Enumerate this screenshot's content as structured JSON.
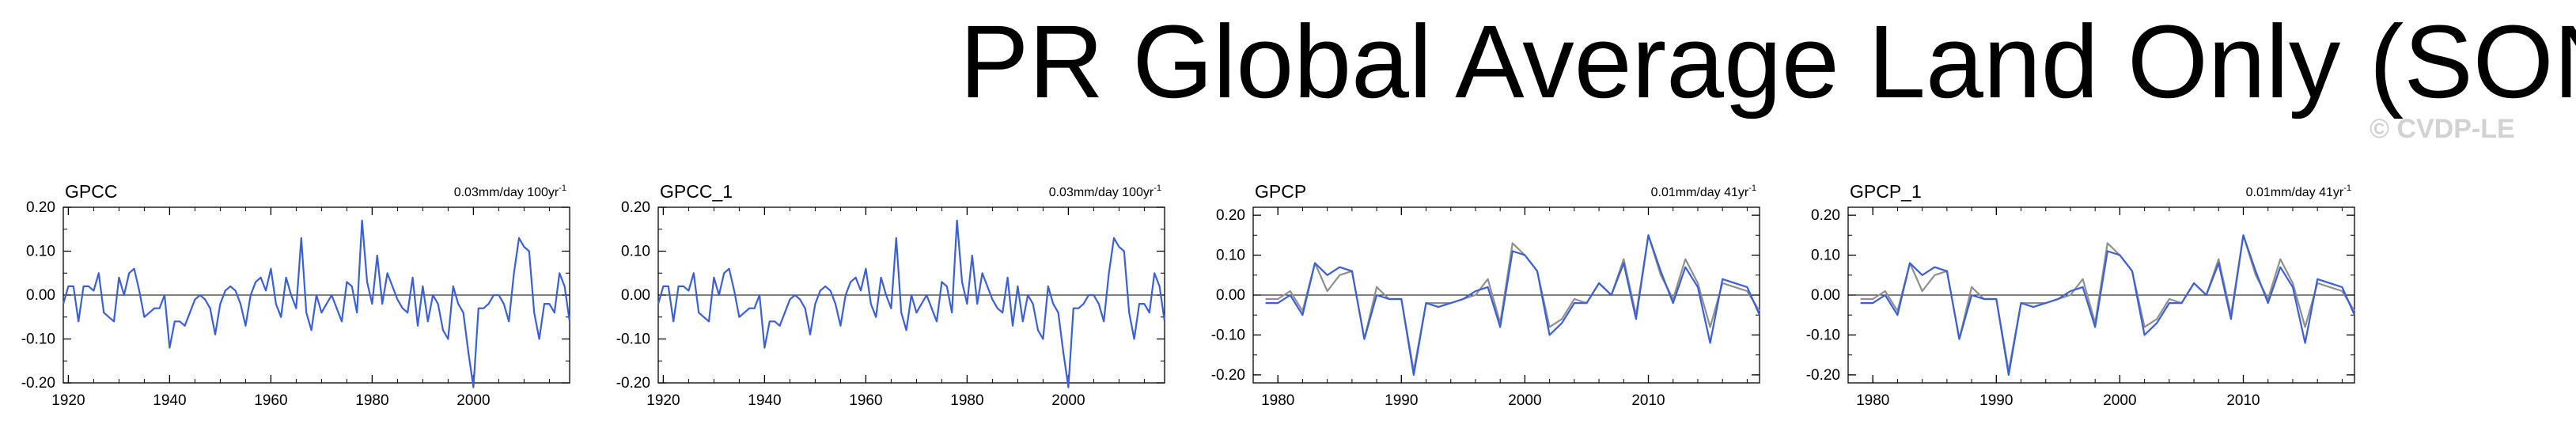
{
  "title": "PR Global Average Land Only (SON)",
  "watermark": "© CVDP-LE",
  "colors": {
    "series_primary": "#3a5fd9",
    "series_secondary": "#8f8f8f",
    "axis": "#000000",
    "zero_line": "#000000"
  },
  "chart_data": [
    {
      "type": "line",
      "name": "GPCC",
      "trend_label": "0.03mm/day 100yr",
      "trend_superscript": "-1",
      "xlim": [
        1919,
        2019
      ],
      "ylim": [
        -0.2,
        0.2
      ],
      "yticks": [
        0.2,
        0.1,
        0.0,
        -0.1,
        -0.2
      ],
      "ytick_labels": [
        "0.20",
        "0.10",
        "0.00",
        "-0.10",
        "-0.20"
      ],
      "xticks": [
        1920,
        1940,
        1960,
        1980,
        2000
      ],
      "xtick_labels": [
        "1920",
        "1940",
        "1960",
        "1980",
        "2000"
      ],
      "grid": false,
      "series": [
        {
          "x": [
            1919,
            1920,
            1921,
            1922,
            1923,
            1924,
            1925,
            1926,
            1927,
            1928,
            1929,
            1930,
            1931,
            1932,
            1933,
            1934,
            1935,
            1936,
            1937,
            1938,
            1939,
            1940,
            1941,
            1942,
            1943,
            1944,
            1945,
            1946,
            1947,
            1948,
            1949,
            1950,
            1951,
            1952,
            1953,
            1954,
            1955,
            1956,
            1957,
            1958,
            1959,
            1960,
            1961,
            1962,
            1963,
            1964,
            1965,
            1966,
            1967,
            1968,
            1969,
            1970,
            1971,
            1972,
            1973,
            1974,
            1975,
            1976,
            1977,
            1978,
            1979,
            1980,
            1981,
            1982,
            1983,
            1984,
            1985,
            1986,
            1987,
            1988,
            1989,
            1990,
            1991,
            1992,
            1993,
            1994,
            1995,
            1996,
            1997,
            1998,
            1999,
            2000,
            2001,
            2002,
            2003,
            2004,
            2005,
            2006,
            2007,
            2008,
            2009,
            2010,
            2011,
            2012,
            2013,
            2014,
            2015,
            2016,
            2017,
            2018,
            2019
          ],
          "y": [
            -0.02,
            0.02,
            0.02,
            -0.06,
            0.02,
            0.02,
            0.01,
            0.05,
            -0.04,
            -0.05,
            -0.06,
            0.04,
            0.0,
            0.05,
            0.06,
            0.01,
            -0.05,
            -0.04,
            -0.03,
            -0.03,
            0.0,
            -0.12,
            -0.06,
            -0.06,
            -0.07,
            -0.04,
            -0.01,
            0.0,
            -0.01,
            -0.03,
            -0.09,
            -0.02,
            0.01,
            0.02,
            0.01,
            -0.02,
            -0.07,
            0.0,
            0.03,
            0.04,
            0.01,
            0.06,
            -0.02,
            -0.05,
            0.04,
            0.0,
            -0.03,
            0.13,
            -0.04,
            -0.08,
            0.0,
            -0.04,
            -0.02,
            0.0,
            -0.03,
            -0.06,
            0.03,
            0.02,
            -0.04,
            0.17,
            0.03,
            -0.02,
            0.09,
            -0.02,
            0.05,
            0.02,
            -0.01,
            -0.03,
            -0.04,
            0.04,
            -0.07,
            0.02,
            -0.06,
            0.0,
            -0.02,
            -0.08,
            -0.1,
            0.02,
            -0.02,
            -0.04,
            -0.13,
            -0.21,
            -0.03,
            -0.03,
            -0.02,
            0.0,
            0.0,
            -0.02,
            -0.06,
            0.05,
            0.13,
            0.11,
            0.1,
            -0.04,
            -0.1,
            -0.02,
            -0.02,
            -0.04,
            0.05,
            0.02,
            -0.06
          ]
        }
      ]
    },
    {
      "type": "line",
      "name": "GPCC_1",
      "trend_label": "0.03mm/day 100yr",
      "trend_superscript": "-1",
      "xlim": [
        1919,
        2019
      ],
      "ylim": [
        -0.2,
        0.2
      ],
      "yticks": [
        0.2,
        0.1,
        0.0,
        -0.1,
        -0.2
      ],
      "ytick_labels": [
        "0.20",
        "0.10",
        "0.00",
        "-0.10",
        "-0.20"
      ],
      "xticks": [
        1920,
        1940,
        1960,
        1980,
        2000
      ],
      "xtick_labels": [
        "1920",
        "1940",
        "1960",
        "1980",
        "2000"
      ],
      "grid": false,
      "series": [
        {
          "x": [
            1919,
            1920,
            1921,
            1922,
            1923,
            1924,
            1925,
            1926,
            1927,
            1928,
            1929,
            1930,
            1931,
            1932,
            1933,
            1934,
            1935,
            1936,
            1937,
            1938,
            1939,
            1940,
            1941,
            1942,
            1943,
            1944,
            1945,
            1946,
            1947,
            1948,
            1949,
            1950,
            1951,
            1952,
            1953,
            1954,
            1955,
            1956,
            1957,
            1958,
            1959,
            1960,
            1961,
            1962,
            1963,
            1964,
            1965,
            1966,
            1967,
            1968,
            1969,
            1970,
            1971,
            1972,
            1973,
            1974,
            1975,
            1976,
            1977,
            1978,
            1979,
            1980,
            1981,
            1982,
            1983,
            1984,
            1985,
            1986,
            1987,
            1988,
            1989,
            1990,
            1991,
            1992,
            1993,
            1994,
            1995,
            1996,
            1997,
            1998,
            1999,
            2000,
            2001,
            2002,
            2003,
            2004,
            2005,
            2006,
            2007,
            2008,
            2009,
            2010,
            2011,
            2012,
            2013,
            2014,
            2015,
            2016,
            2017,
            2018,
            2019
          ],
          "y": [
            -0.02,
            0.02,
            0.02,
            -0.06,
            0.02,
            0.02,
            0.01,
            0.05,
            -0.04,
            -0.05,
            -0.06,
            0.04,
            0.0,
            0.05,
            0.06,
            0.01,
            -0.05,
            -0.04,
            -0.03,
            -0.03,
            0.0,
            -0.12,
            -0.06,
            -0.06,
            -0.07,
            -0.04,
            -0.01,
            0.0,
            -0.01,
            -0.03,
            -0.09,
            -0.02,
            0.01,
            0.02,
            0.01,
            -0.02,
            -0.07,
            0.0,
            0.03,
            0.04,
            0.01,
            0.06,
            -0.02,
            -0.05,
            0.04,
            0.0,
            -0.03,
            0.13,
            -0.04,
            -0.08,
            0.0,
            -0.04,
            -0.02,
            0.0,
            -0.03,
            -0.06,
            0.03,
            0.02,
            -0.04,
            0.17,
            0.03,
            -0.02,
            0.09,
            -0.02,
            0.05,
            0.02,
            -0.01,
            -0.03,
            -0.04,
            0.04,
            -0.07,
            0.02,
            -0.06,
            0.0,
            -0.02,
            -0.08,
            -0.1,
            0.02,
            -0.02,
            -0.04,
            -0.13,
            -0.21,
            -0.03,
            -0.03,
            -0.02,
            0.0,
            0.0,
            -0.02,
            -0.06,
            0.05,
            0.13,
            0.11,
            0.1,
            -0.04,
            -0.1,
            -0.02,
            -0.02,
            -0.04,
            0.05,
            0.02,
            -0.06
          ]
        }
      ]
    },
    {
      "type": "line",
      "name": "GPCP",
      "trend_label": "0.01mm/day 41yr",
      "trend_superscript": "-1",
      "xlim": [
        1978,
        2019
      ],
      "ylim": [
        -0.22,
        0.22
      ],
      "yticks": [
        0.2,
        0.1,
        0.0,
        -0.1,
        -0.2
      ],
      "ytick_labels": [
        "0.20",
        "0.10",
        "0.00",
        "-0.10",
        "-0.20"
      ],
      "xticks": [
        1980,
        1990,
        2000,
        2010
      ],
      "xtick_labels": [
        "1980",
        "1990",
        "2000",
        "2010"
      ],
      "grid": false,
      "series": [
        {
          "x": [
            1979,
            1980,
            1981,
            1982,
            1983,
            1984,
            1985,
            1986,
            1987,
            1988,
            1989,
            1990,
            1991,
            1992,
            1993,
            1994,
            1995,
            1996,
            1997,
            1998,
            1999,
            2000,
            2001,
            2002,
            2003,
            2004,
            2005,
            2006,
            2007,
            2008,
            2009,
            2010,
            2011,
            2012,
            2013,
            2014,
            2015,
            2016,
            2017,
            2018,
            2019
          ],
          "y": [
            -0.01,
            -0.01,
            0.01,
            -0.04,
            0.08,
            0.01,
            0.05,
            0.06,
            -0.11,
            0.02,
            -0.01,
            -0.01,
            -0.19,
            -0.02,
            -0.02,
            -0.02,
            -0.01,
            0.0,
            0.04,
            -0.07,
            0.13,
            0.1,
            0.06,
            -0.08,
            -0.06,
            -0.01,
            -0.02,
            0.03,
            0.0,
            0.09,
            -0.05,
            0.15,
            0.05,
            -0.01,
            0.09,
            0.03,
            -0.08,
            0.03,
            0.02,
            0.01,
            -0.04
          ]
        },
        {
          "x": [
            1979,
            1980,
            1981,
            1982,
            1983,
            1984,
            1985,
            1986,
            1987,
            1988,
            1989,
            1990,
            1991,
            1992,
            1993,
            1994,
            1995,
            1996,
            1997,
            1998,
            1999,
            2000,
            2001,
            2002,
            2003,
            2004,
            2005,
            2006,
            2007,
            2008,
            2009,
            2010,
            2011,
            2012,
            2013,
            2014,
            2015,
            2016,
            2017,
            2018,
            2019
          ],
          "y": [
            -0.02,
            -0.02,
            0.0,
            -0.05,
            0.08,
            0.05,
            0.07,
            0.06,
            -0.11,
            0.0,
            -0.01,
            -0.01,
            -0.2,
            -0.02,
            -0.03,
            -0.02,
            -0.01,
            0.01,
            0.02,
            -0.08,
            0.11,
            0.1,
            0.06,
            -0.1,
            -0.07,
            -0.02,
            -0.02,
            0.03,
            0.0,
            0.08,
            -0.06,
            0.15,
            0.06,
            -0.02,
            0.07,
            0.02,
            -0.12,
            0.04,
            0.03,
            0.02,
            -0.05
          ]
        }
      ]
    },
    {
      "type": "line",
      "name": "GPCP_1",
      "trend_label": "0.01mm/day 41yr",
      "trend_superscript": "-1",
      "xlim": [
        1978,
        2019
      ],
      "ylim": [
        -0.22,
        0.22
      ],
      "yticks": [
        0.2,
        0.1,
        0.0,
        -0.1,
        -0.2
      ],
      "ytick_labels": [
        "0.20",
        "0.10",
        "0.00",
        "-0.10",
        "-0.20"
      ],
      "xticks": [
        1980,
        1990,
        2000,
        2010
      ],
      "xtick_labels": [
        "1980",
        "1990",
        "2000",
        "2010"
      ],
      "grid": false,
      "series": [
        {
          "x": [
            1979,
            1980,
            1981,
            1982,
            1983,
            1984,
            1985,
            1986,
            1987,
            1988,
            1989,
            1990,
            1991,
            1992,
            1993,
            1994,
            1995,
            1996,
            1997,
            1998,
            1999,
            2000,
            2001,
            2002,
            2003,
            2004,
            2005,
            2006,
            2007,
            2008,
            2009,
            2010,
            2011,
            2012,
            2013,
            2014,
            2015,
            2016,
            2017,
            2018,
            2019
          ],
          "y": [
            -0.01,
            -0.01,
            0.01,
            -0.04,
            0.08,
            0.01,
            0.05,
            0.06,
            -0.11,
            0.02,
            -0.01,
            -0.01,
            -0.19,
            -0.02,
            -0.02,
            -0.02,
            -0.01,
            0.0,
            0.04,
            -0.07,
            0.13,
            0.1,
            0.06,
            -0.08,
            -0.06,
            -0.01,
            -0.02,
            0.03,
            0.0,
            0.09,
            -0.05,
            0.15,
            0.05,
            -0.01,
            0.09,
            0.03,
            -0.08,
            0.03,
            0.02,
            0.01,
            -0.04
          ]
        },
        {
          "x": [
            1979,
            1980,
            1981,
            1982,
            1983,
            1984,
            1985,
            1986,
            1987,
            1988,
            1989,
            1990,
            1991,
            1992,
            1993,
            1994,
            1995,
            1996,
            1997,
            1998,
            1999,
            2000,
            2001,
            2002,
            2003,
            2004,
            2005,
            2006,
            2007,
            2008,
            2009,
            2010,
            2011,
            2012,
            2013,
            2014,
            2015,
            2016,
            2017,
            2018,
            2019
          ],
          "y": [
            -0.02,
            -0.02,
            0.0,
            -0.05,
            0.08,
            0.05,
            0.07,
            0.06,
            -0.11,
            0.0,
            -0.01,
            -0.01,
            -0.2,
            -0.02,
            -0.03,
            -0.02,
            -0.01,
            0.01,
            0.02,
            -0.08,
            0.11,
            0.1,
            0.06,
            -0.1,
            -0.07,
            -0.02,
            -0.02,
            0.03,
            0.0,
            0.08,
            -0.06,
            0.15,
            0.06,
            -0.02,
            0.07,
            0.02,
            -0.12,
            0.04,
            0.03,
            0.02,
            -0.05
          ]
        }
      ]
    }
  ]
}
